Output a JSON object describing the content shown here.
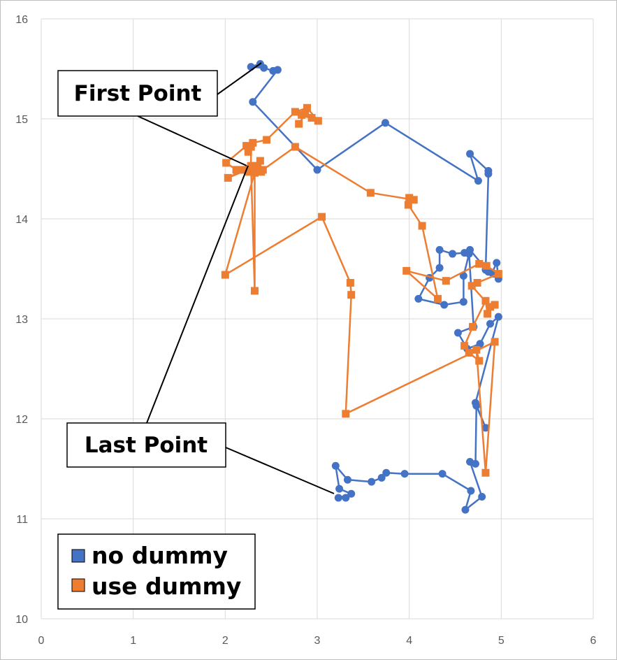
{
  "chart_data": {
    "type": "scatter",
    "title": "",
    "xlabel": "",
    "ylabel": "",
    "xlim": [
      0,
      6
    ],
    "ylim": [
      10,
      16
    ],
    "x_ticks": [
      "0",
      "1",
      "2",
      "3",
      "4",
      "5",
      "6"
    ],
    "y_ticks": [
      "10",
      "11",
      "12",
      "13",
      "14",
      "15",
      "16"
    ],
    "grid": true,
    "legend_position": "bottom-left",
    "series": [
      {
        "name": "no dummy",
        "color": "#4472C4",
        "marker": "circle",
        "points": [
          [
            2.38,
            15.55
          ],
          [
            2.28,
            15.52
          ],
          [
            2.42,
            15.51
          ],
          [
            2.52,
            15.48
          ],
          [
            2.57,
            15.49
          ],
          [
            2.3,
            15.17
          ],
          [
            3.0,
            14.49
          ],
          [
            3.74,
            14.96
          ],
          [
            4.75,
            14.38
          ],
          [
            4.66,
            14.65
          ],
          [
            4.86,
            14.48
          ],
          [
            4.86,
            14.45
          ],
          [
            4.83,
            13.49
          ],
          [
            4.9,
            13.46
          ],
          [
            4.95,
            13.56
          ],
          [
            4.97,
            13.4
          ],
          [
            4.92,
            13.45
          ],
          [
            4.86,
            13.47
          ],
          [
            4.66,
            13.69
          ],
          [
            4.6,
            13.66
          ],
          [
            4.47,
            13.65
          ],
          [
            4.33,
            13.69
          ],
          [
            4.33,
            13.51
          ],
          [
            4.22,
            13.41
          ],
          [
            4.1,
            13.2
          ],
          [
            4.38,
            13.14
          ],
          [
            4.59,
            13.17
          ],
          [
            4.59,
            13.43
          ],
          [
            4.65,
            13.65
          ],
          [
            4.7,
            12.92
          ],
          [
            4.53,
            12.86
          ],
          [
            4.63,
            12.7
          ],
          [
            4.77,
            12.75
          ],
          [
            4.88,
            12.95
          ],
          [
            4.97,
            13.02
          ],
          [
            4.72,
            12.16
          ],
          [
            4.83,
            11.91
          ],
          [
            4.73,
            12.13
          ],
          [
            4.72,
            11.55
          ],
          [
            4.66,
            11.57
          ],
          [
            4.79,
            11.22
          ],
          [
            4.61,
            11.09
          ],
          [
            4.67,
            11.28
          ],
          [
            4.36,
            11.45
          ],
          [
            3.95,
            11.45
          ],
          [
            3.75,
            11.46
          ],
          [
            3.7,
            11.41
          ],
          [
            3.59,
            11.37
          ],
          [
            3.33,
            11.39
          ],
          [
            3.2,
            11.53
          ],
          [
            3.24,
            11.3
          ],
          [
            3.37,
            11.25
          ],
          [
            3.23,
            11.21
          ],
          [
            3.31,
            11.21
          ]
        ]
      },
      {
        "name": "use dummy",
        "color": "#ED7D31",
        "marker": "square",
        "points": [
          [
            2.8,
            14.95
          ],
          [
            2.87,
            15.05
          ],
          [
            2.94,
            15.01
          ],
          [
            2.83,
            15.04
          ],
          [
            3.01,
            14.98
          ],
          [
            2.89,
            15.11
          ],
          [
            2.76,
            15.07
          ],
          [
            2.45,
            14.79
          ],
          [
            2.3,
            14.76
          ],
          [
            2.23,
            14.73
          ],
          [
            2.01,
            14.56
          ],
          [
            2.12,
            14.49
          ],
          [
            2.2,
            14.49
          ],
          [
            2.26,
            14.47
          ],
          [
            2.39,
            14.47
          ],
          [
            2.38,
            14.58
          ],
          [
            2.03,
            14.41
          ],
          [
            2.34,
            14.53
          ],
          [
            2.41,
            14.49
          ],
          [
            2.76,
            14.72
          ],
          [
            3.58,
            14.26
          ],
          [
            4.05,
            14.19
          ],
          [
            4.0,
            14.21
          ],
          [
            3.99,
            14.14
          ],
          [
            4.14,
            13.93
          ],
          [
            4.31,
            13.2
          ],
          [
            3.97,
            13.48
          ],
          [
            4.4,
            13.38
          ],
          [
            4.76,
            13.55
          ],
          [
            4.84,
            13.53
          ],
          [
            4.97,
            13.45
          ],
          [
            4.74,
            13.36
          ],
          [
            4.68,
            13.33
          ],
          [
            4.88,
            13.12
          ],
          [
            4.93,
            13.14
          ],
          [
            4.85,
            13.05
          ],
          [
            4.83,
            13.18
          ],
          [
            4.69,
            12.92
          ],
          [
            4.6,
            12.73
          ],
          [
            4.65,
            12.66
          ],
          [
            4.76,
            12.58
          ],
          [
            4.73,
            12.69
          ],
          [
            4.83,
            11.46
          ],
          [
            4.93,
            12.77
          ],
          [
            3.31,
            12.05
          ],
          [
            3.37,
            13.24
          ],
          [
            3.36,
            13.36
          ],
          [
            3.05,
            14.02
          ],
          [
            2.0,
            13.44
          ],
          [
            2.32,
            14.46
          ],
          [
            2.32,
            13.28
          ],
          [
            2.28,
            14.53
          ],
          [
            2.28,
            14.72
          ],
          [
            2.25,
            14.67
          ]
        ]
      }
    ],
    "annotations": [
      {
        "label": "First Point"
      },
      {
        "label": "Last Point"
      }
    ]
  }
}
